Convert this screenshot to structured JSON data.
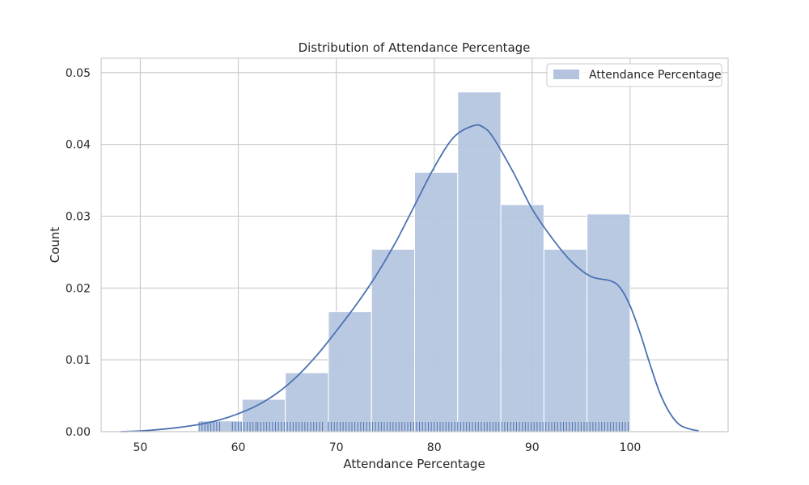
{
  "chart_data": {
    "type": "bar",
    "title": "Distribution of Attendance Percentage",
    "xlabel": "Attendance Percentage",
    "ylabel": "Count",
    "xlim": [
      46,
      110
    ],
    "ylim": [
      0,
      0.052
    ],
    "x_ticks": [
      50,
      60,
      70,
      80,
      90,
      100
    ],
    "y_ticks": [
      0.0,
      0.01,
      0.02,
      0.03,
      0.04,
      0.05
    ],
    "x_tick_labels": [
      "50",
      "60",
      "70",
      "80",
      "90",
      "100"
    ],
    "y_tick_labels": [
      "0.00",
      "0.01",
      "0.02",
      "0.03",
      "0.04",
      "0.05"
    ],
    "grid": true,
    "legend": {
      "position": "top-right",
      "entries": [
        "Attendance Percentage"
      ]
    },
    "histogram": {
      "bin_edges": [
        56.0,
        60.4,
        64.8,
        69.2,
        73.6,
        78.0,
        82.4,
        86.8,
        91.2,
        95.6,
        100.0
      ],
      "values": [
        0.0015,
        0.0045,
        0.0082,
        0.0167,
        0.0254,
        0.0361,
        0.0473,
        0.0316,
        0.0254,
        0.0303
      ]
    },
    "kde": {
      "x": [
        48,
        50,
        52,
        54,
        56,
        58,
        60,
        62,
        64,
        66,
        68,
        70,
        72,
        74,
        76,
        78,
        80,
        82,
        84,
        85,
        86,
        88,
        90,
        92,
        94,
        96,
        98,
        99,
        100,
        101,
        102,
        103,
        104,
        105,
        106,
        107
      ],
      "y": [
        0.0,
        0.0001,
        0.0003,
        0.0006,
        0.001,
        0.0016,
        0.0025,
        0.0037,
        0.0054,
        0.0077,
        0.0106,
        0.014,
        0.0176,
        0.0216,
        0.0262,
        0.0315,
        0.0368,
        0.041,
        0.0426,
        0.0424,
        0.041,
        0.0363,
        0.031,
        0.027,
        0.0237,
        0.0216,
        0.021,
        0.02,
        0.0175,
        0.0138,
        0.0095,
        0.0055,
        0.0027,
        0.001,
        0.0004,
        0.0001
      ]
    },
    "rug": {
      "segments": [
        [
          56.0,
          58.3
        ],
        [
          59.4,
          61.8
        ],
        [
          62.0,
          68.6
        ],
        [
          69.2,
          100.0
        ]
      ],
      "step": 0.3
    },
    "colors": {
      "bar_fill": "#b4c4df",
      "bar_edge": "#ffffff",
      "kde_line": "#4c72b0",
      "rug": "#4c72b0",
      "grid": "#cccccc",
      "axes_edge": "#cccccc"
    }
  }
}
